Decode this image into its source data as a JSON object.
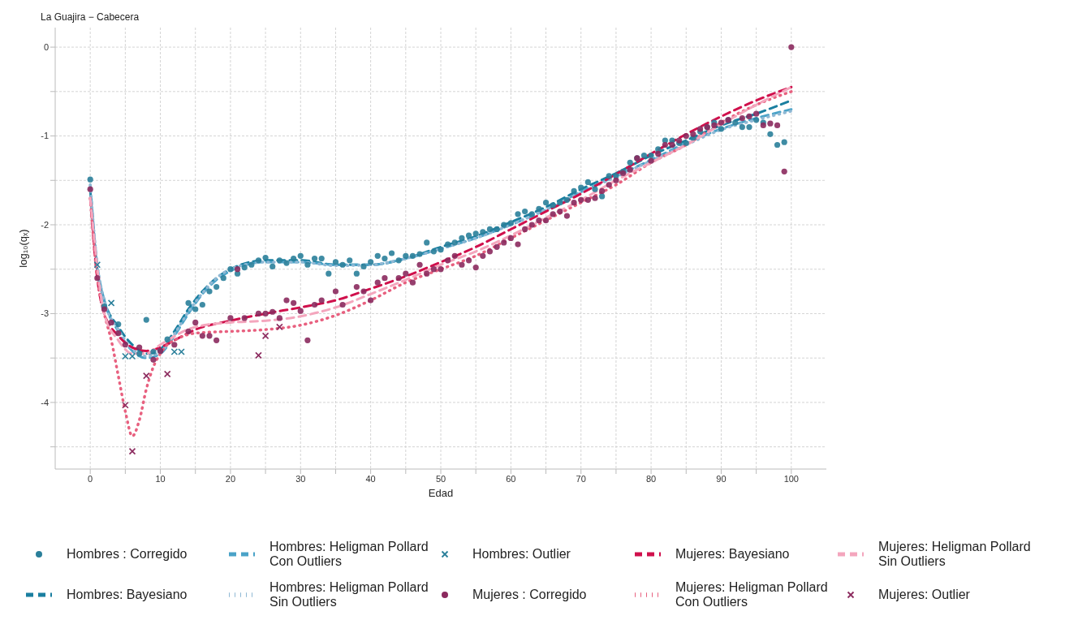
{
  "chart_data": {
    "type": "scatter",
    "title": "La Guajira − Cabecera",
    "xlabel": "Edad",
    "ylabel": "log₁₀(qₓ)",
    "xlim": [
      -5,
      105
    ],
    "ylim": [
      -4.75,
      0.22
    ],
    "xticks": [
      0,
      {
        "value": 5,
        "label": null
      },
      10,
      {
        "value": 15,
        "label": null
      },
      20,
      {
        "value": 25,
        "label": null
      },
      30,
      {
        "value": 35,
        "label": null
      },
      40,
      {
        "value": 45,
        "label": null
      },
      50,
      {
        "value": 55,
        "label": null
      },
      60,
      {
        "value": 65,
        "label": null
      },
      70,
      {
        "value": 75,
        "label": null
      },
      80,
      {
        "value": 85,
        "label": null
      },
      90,
      {
        "value": 95,
        "label": null
      },
      100
    ],
    "yticks": [
      {
        "value": -4.5,
        "label": null
      },
      -4,
      {
        "value": -3.5,
        "label": null
      },
      -3,
      {
        "value": -2.5,
        "label": null
      },
      -2,
      {
        "value": -1.5,
        "label": null
      },
      -1,
      {
        "value": -0.5,
        "label": null
      },
      0
    ],
    "grid": true,
    "legend": "bottom",
    "series": [
      {
        "name": "Hombres : Corregido",
        "type": "scatter",
        "marker": "circle",
        "color": "#2a7f9a",
        "x": [
          0,
          2,
          4,
          7,
          8,
          9,
          10,
          11,
          14,
          15,
          16,
          17,
          18,
          19,
          20,
          21,
          22,
          23,
          24,
          25,
          26,
          27,
          28,
          29,
          30,
          31,
          32,
          33,
          34,
          35,
          36,
          37,
          38,
          39,
          40,
          41,
          42,
          43,
          44,
          45,
          46,
          47,
          48,
          49,
          50,
          51,
          52,
          53,
          54,
          55,
          56,
          57,
          58,
          59,
          60,
          61,
          62,
          63,
          64,
          65,
          66,
          67,
          68,
          69,
          70,
          71,
          72,
          73,
          74,
          75,
          76,
          77,
          78,
          79,
          80,
          81,
          82,
          83,
          84,
          85,
          86,
          87,
          88,
          89,
          90,
          91,
          92,
          93,
          94,
          95,
          96,
          97,
          98,
          99
        ],
        "values": [
          -1.49,
          -2.92,
          -3.12,
          -3.45,
          -3.07,
          -3.43,
          -3.42,
          -3.29,
          -2.88,
          -2.95,
          -2.9,
          -2.75,
          -2.7,
          -2.6,
          -2.5,
          -2.55,
          -2.48,
          -2.45,
          -2.4,
          -2.37,
          -2.47,
          -2.4,
          -2.43,
          -2.38,
          -2.35,
          -2.45,
          -2.38,
          -2.38,
          -2.55,
          -2.42,
          -2.45,
          -2.4,
          -2.55,
          -2.47,
          -2.42,
          -2.35,
          -2.38,
          -2.32,
          -2.4,
          -2.35,
          -2.35,
          -2.33,
          -2.2,
          -2.3,
          -2.28,
          -2.22,
          -2.2,
          -2.15,
          -2.12,
          -2.1,
          -2.08,
          -2.05,
          -2.05,
          -2.0,
          -1.98,
          -1.88,
          -1.85,
          -1.88,
          -1.82,
          -1.75,
          -1.78,
          -1.75,
          -1.72,
          -1.62,
          -1.58,
          -1.52,
          -1.6,
          -1.68,
          -1.45,
          -1.45,
          -1.4,
          -1.3,
          -1.25,
          -1.22,
          -1.22,
          -1.15,
          -1.05,
          -1.05,
          -1.08,
          -1.08,
          -1.02,
          -0.95,
          -0.9,
          -0.85,
          -0.92,
          -0.82,
          -0.85,
          -0.9,
          -0.9,
          -0.82,
          -0.85,
          -0.98,
          -1.1,
          -1.07
        ]
      },
      {
        "name": "Hombres: Bayesiano",
        "type": "line",
        "line_style": "dashed",
        "color": "#1a7fa0",
        "x": [
          0,
          1,
          2,
          4,
          6,
          8,
          10,
          12,
          14,
          16,
          18,
          20,
          25,
          30,
          35,
          40,
          45,
          50,
          55,
          60,
          65,
          70,
          75,
          80,
          85,
          90,
          95,
          100
        ],
        "values": [
          -1.6,
          -2.5,
          -2.85,
          -3.15,
          -3.35,
          -3.45,
          -3.4,
          -3.2,
          -2.95,
          -2.75,
          -2.6,
          -2.5,
          -2.4,
          -2.4,
          -2.45,
          -2.45,
          -2.38,
          -2.25,
          -2.13,
          -1.97,
          -1.8,
          -1.6,
          -1.42,
          -1.22,
          -1.05,
          -0.88,
          -0.75,
          -0.6
        ]
      },
      {
        "name": "Hombres: Heligman Pollard\nCon Outliers",
        "type": "line",
        "line_style": "dashed",
        "color": "#4aa3c8",
        "x": [
          0,
          1,
          2,
          4,
          6,
          8,
          10,
          12,
          14,
          16,
          18,
          20,
          25,
          30,
          35,
          40,
          45,
          50,
          55,
          60,
          65,
          70,
          75,
          80,
          85,
          90,
          95,
          100
        ],
        "values": [
          -1.55,
          -2.45,
          -2.85,
          -3.2,
          -3.42,
          -3.5,
          -3.45,
          -3.25,
          -3.0,
          -2.78,
          -2.62,
          -2.52,
          -2.42,
          -2.42,
          -2.45,
          -2.45,
          -2.38,
          -2.27,
          -2.15,
          -2.0,
          -1.83,
          -1.63,
          -1.45,
          -1.27,
          -1.08,
          -0.92,
          -0.8,
          -0.7
        ]
      },
      {
        "name": "Hombres: Heligman Pollard\nSin Outliers",
        "type": "line",
        "line_style": "dotted",
        "color": "#8fb8d4",
        "x": [
          0,
          1,
          2,
          4,
          6,
          8,
          10,
          12,
          14,
          16,
          18,
          20,
          25,
          30,
          35,
          40,
          45,
          50,
          55,
          60,
          65,
          70,
          75,
          80,
          85,
          90,
          95,
          100
        ],
        "values": [
          -1.55,
          -2.45,
          -2.85,
          -3.18,
          -3.4,
          -3.48,
          -3.43,
          -3.23,
          -2.98,
          -2.77,
          -2.6,
          -2.5,
          -2.42,
          -2.42,
          -2.46,
          -2.45,
          -2.38,
          -2.27,
          -2.15,
          -2.0,
          -1.83,
          -1.64,
          -1.46,
          -1.28,
          -1.1,
          -0.93,
          -0.82,
          -0.72
        ]
      },
      {
        "name": "Hombres: Outlier",
        "type": "scatter",
        "marker": "cross",
        "color": "#2a7f9a",
        "x": [
          1,
          3,
          5,
          6,
          12,
          13
        ],
        "values": [
          -2.45,
          -2.88,
          -3.48,
          -3.48,
          -3.43,
          -3.43
        ]
      },
      {
        "name": "Mujeres : Corregido",
        "type": "scatter",
        "marker": "circle",
        "color": "#8b2a5e",
        "x": [
          0,
          1,
          2,
          3,
          4,
          5,
          7,
          9,
          10,
          12,
          14,
          15,
          16,
          17,
          18,
          20,
          21,
          22,
          24,
          25,
          26,
          27,
          28,
          29,
          30,
          31,
          32,
          33,
          35,
          36,
          38,
          39,
          40,
          41,
          42,
          44,
          45,
          46,
          47,
          48,
          49,
          50,
          51,
          52,
          53,
          54,
          55,
          56,
          57,
          58,
          59,
          60,
          61,
          62,
          63,
          64,
          65,
          66,
          67,
          68,
          69,
          70,
          71,
          72,
          73,
          74,
          75,
          76,
          77,
          78,
          80,
          81,
          82,
          83,
          84,
          85,
          86,
          87,
          88,
          89,
          90,
          91,
          93,
          94,
          95,
          96,
          97,
          98,
          99,
          100
        ],
        "values": [
          -1.6,
          -2.6,
          -2.95,
          -3.1,
          -3.22,
          -3.35,
          -3.38,
          -3.52,
          -3.42,
          -3.35,
          -3.2,
          -3.1,
          -3.25,
          -3.25,
          -3.3,
          -3.05,
          -2.5,
          -3.05,
          -3.0,
          -3.0,
          -2.98,
          -3.05,
          -2.85,
          -2.88,
          -2.97,
          -3.3,
          -2.9,
          -2.85,
          -2.75,
          -2.9,
          -2.7,
          -2.75,
          -2.85,
          -2.65,
          -2.6,
          -2.6,
          -2.55,
          -2.65,
          -2.45,
          -2.55,
          -2.5,
          -2.5,
          -2.4,
          -2.35,
          -2.45,
          -2.4,
          -2.48,
          -2.35,
          -2.3,
          -2.25,
          -2.2,
          -2.15,
          -2.22,
          -2.05,
          -2.0,
          -1.95,
          -1.95,
          -1.88,
          -1.85,
          -1.9,
          -1.75,
          -1.72,
          -1.72,
          -1.7,
          -1.62,
          -1.55,
          -1.5,
          -1.42,
          -1.38,
          -1.25,
          -1.28,
          -1.2,
          -1.1,
          -1.1,
          -1.05,
          -1.0,
          -0.98,
          -0.92,
          -0.9,
          -0.88,
          -0.85,
          -0.82,
          -0.8,
          -0.78,
          -0.75,
          -0.88,
          -0.86,
          -0.88,
          -1.4,
          0.0
        ]
      },
      {
        "name": "Mujeres: Bayesiano",
        "type": "line",
        "line_style": "dashed",
        "color": "#d0104c",
        "x": [
          0,
          1,
          2,
          4,
          6,
          8,
          10,
          12,
          15,
          20,
          25,
          30,
          35,
          40,
          45,
          50,
          55,
          60,
          65,
          70,
          75,
          80,
          85,
          90,
          95,
          100
        ],
        "values": [
          -1.7,
          -2.6,
          -3.0,
          -3.25,
          -3.38,
          -3.42,
          -3.38,
          -3.3,
          -3.18,
          -3.08,
          -3.0,
          -2.93,
          -2.85,
          -2.72,
          -2.58,
          -2.42,
          -2.25,
          -2.05,
          -1.85,
          -1.65,
          -1.43,
          -1.2,
          -0.98,
          -0.78,
          -0.6,
          -0.45
        ]
      },
      {
        "name": "Mujeres: Heligman Pollard\nCon Outliers",
        "type": "line",
        "line_style": "dotted",
        "color": "#e8607f",
        "x": [
          0,
          1,
          2,
          3,
          4,
          5,
          6,
          7,
          8,
          9,
          10,
          11,
          12,
          15,
          20,
          25,
          30,
          35,
          40,
          45,
          50,
          55,
          60,
          65,
          70,
          75,
          80,
          85,
          90,
          95,
          100
        ],
        "values": [
          -1.7,
          -2.6,
          -3.0,
          -3.3,
          -3.7,
          -4.1,
          -4.38,
          -4.2,
          -3.85,
          -3.6,
          -3.45,
          -3.35,
          -3.3,
          -3.22,
          -3.2,
          -3.18,
          -3.13,
          -3.02,
          -2.85,
          -2.65,
          -2.5,
          -2.35,
          -2.15,
          -1.95,
          -1.75,
          -1.55,
          -1.3,
          -1.1,
          -0.85,
          -0.65,
          -0.5
        ]
      },
      {
        "name": "Mujeres: Heligman Pollard\nSin Outliers",
        "type": "line",
        "line_style": "dashed",
        "color": "#f4a6bd",
        "x": [
          0,
          2,
          4,
          6,
          8,
          10,
          15,
          20,
          25,
          30,
          35,
          40,
          45,
          50,
          55,
          60,
          65,
          70,
          75,
          80,
          85,
          90,
          95,
          100
        ],
        "values": [
          -1.7,
          -3.0,
          -3.3,
          -3.45,
          -3.45,
          -3.35,
          -3.15,
          -3.1,
          -3.08,
          -3.03,
          -2.93,
          -2.78,
          -2.62,
          -2.45,
          -2.3,
          -2.12,
          -1.92,
          -1.72,
          -1.5,
          -1.3,
          -1.1,
          -0.87,
          -0.65,
          -0.45
        ]
      },
      {
        "name": "Mujeres: Outlier",
        "type": "scatter",
        "marker": "cross",
        "color": "#8b2a5e",
        "x": [
          5,
          6,
          8,
          11,
          24,
          25,
          27
        ],
        "values": [
          -4.03,
          -4.55,
          -3.7,
          -3.68,
          -3.47,
          -3.25,
          -3.15
        ]
      }
    ]
  }
}
